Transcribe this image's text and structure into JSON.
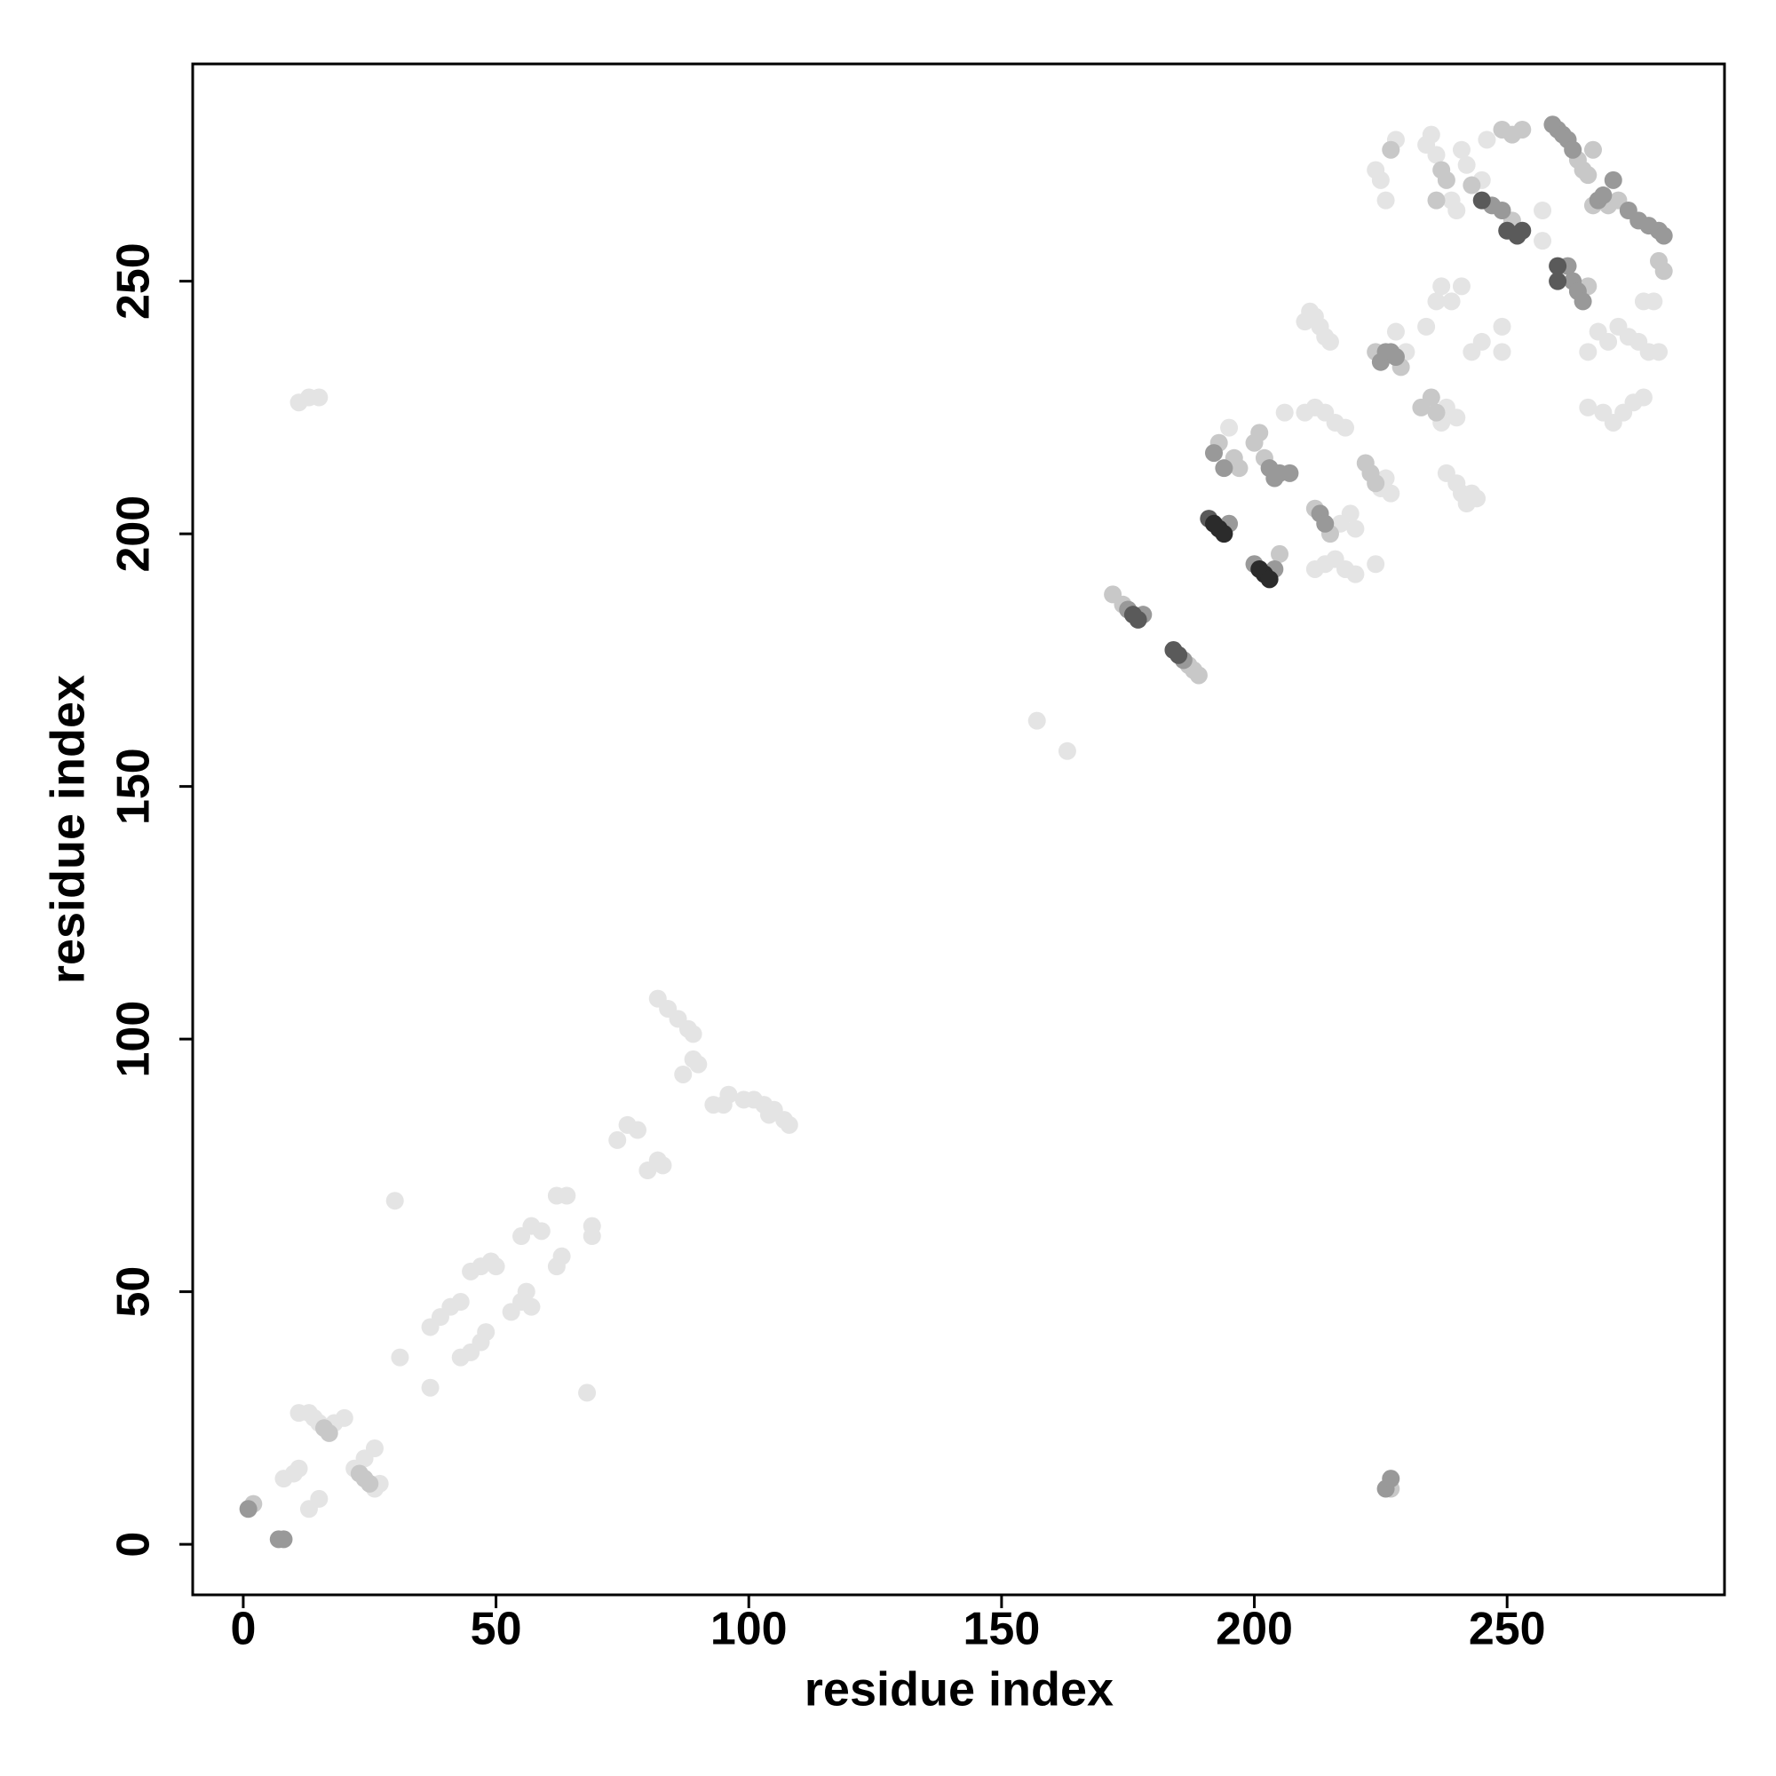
{
  "chart_data": {
    "type": "scatter",
    "x_label": "residue index",
    "y_label": "residue index",
    "xlim": [
      -10,
      293
    ],
    "ylim": [
      -10,
      293
    ],
    "xticks": [
      0,
      50,
      100,
      150,
      200,
      250
    ],
    "yticks": [
      0,
      50,
      100,
      150,
      200,
      250
    ],
    "grid": false,
    "series": [
      {
        "color": "#e4e4e4",
        "x": [
          8,
          10,
          11,
          13,
          15,
          11,
          13,
          14,
          15,
          18,
          20,
          22,
          26,
          24,
          26,
          27,
          11,
          13,
          15,
          30,
          31,
          37,
          37,
          39,
          41,
          43,
          43,
          45,
          47,
          48,
          45,
          47,
          49,
          50,
          53,
          55,
          56,
          57,
          55,
          57,
          59,
          62,
          63,
          62,
          64,
          68,
          69,
          69,
          74,
          76,
          78,
          80,
          82,
          83,
          82,
          84,
          86,
          88,
          89,
          87,
          89,
          90,
          93,
          96,
          95,
          99,
          101,
          103,
          105,
          107,
          108,
          104,
          157,
          163,
          195,
          206,
          210,
          211,
          212,
          213,
          214,
          215,
          210,
          212,
          214,
          216,
          218,
          217,
          219,
          220,
          212,
          214,
          216,
          218,
          220,
          224,
          225,
          226,
          227,
          230,
          228,
          224,
          225,
          226,
          228,
          237,
          238,
          240,
          238,
          240,
          241,
          242,
          243,
          244,
          234,
          236,
          237,
          239,
          241,
          243,
          245,
          249,
          249,
          234,
          235,
          236,
          239,
          240,
          241,
          242,
          245,
          246,
          257,
          257,
          266,
          268,
          270,
          272,
          274,
          276,
          278,
          280,
          277,
          266,
          269,
          271,
          273,
          275,
          277,
          279
        ],
        "values": [
          13,
          14,
          15,
          7,
          9,
          26,
          26,
          25,
          24,
          24,
          25,
          15,
          11,
          17,
          19,
          12,
          226,
          227,
          227,
          68,
          37,
          31,
          43,
          45,
          47,
          48,
          37,
          38,
          40,
          42,
          54,
          55,
          56,
          55,
          46,
          48,
          50,
          47,
          61,
          63,
          62,
          55,
          57,
          69,
          69,
          30,
          61,
          63,
          80,
          83,
          82,
          74,
          76,
          75,
          108,
          106,
          104,
          102,
          101,
          93,
          96,
          95,
          87,
          89,
          87,
          88,
          88,
          87,
          86,
          84,
          83,
          85,
          163,
          157,
          221,
          224,
          242,
          244,
          243,
          241,
          239,
          238,
          224,
          225,
          224,
          222,
          221,
          202,
          204,
          201,
          193,
          194,
          195,
          193,
          192,
          194,
          209,
          211,
          208,
          236,
          240,
          272,
          270,
          266,
          278,
          222,
          225,
          223,
          212,
          210,
          208,
          206,
          208,
          207,
          241,
          246,
          249,
          246,
          249,
          236,
          238,
          241,
          236,
          277,
          279,
          275,
          266,
          264,
          276,
          273,
          270,
          278,
          264,
          258,
          236,
          240,
          238,
          241,
          239,
          238,
          236,
          236,
          246,
          225,
          224,
          222,
          224,
          226,
          227,
          246
        ]
      },
      {
        "color": "#c8c8c8",
        "x": [
          2,
          172,
          174,
          187,
          188,
          189,
          205,
          212,
          215,
          264,
          265,
          266,
          267,
          251,
          249,
          251,
          253,
          266,
          267,
          270,
          272,
          281,
          280,
          224,
          229,
          193,
          196,
          197,
          200,
          201,
          202,
          222,
          223,
          224,
          233,
          235,
          236,
          227,
          236,
          238,
          237,
          243,
          16,
          17,
          23,
          24,
          25,
          227
        ],
        "values": [
          8,
          188,
          186,
          174,
          173,
          172,
          196,
          205,
          200,
          274,
          272,
          271,
          276,
          262,
          280,
          279,
          280,
          249,
          265,
          265,
          266,
          252,
          254,
          236,
          233,
          218,
          215,
          213,
          218,
          220,
          215,
          214,
          212,
          210,
          225,
          227,
          224,
          276,
          266,
          270,
          272,
          269,
          23,
          22,
          14,
          13,
          12,
          11
        ]
      },
      {
        "color": "#999999",
        "x": [
          175,
          178,
          186,
          195,
          200,
          204,
          213,
          214,
          203,
          204,
          259,
          260,
          261,
          262,
          263,
          1,
          7,
          8,
          247,
          249,
          262,
          263,
          264,
          265,
          268,
          269,
          271,
          274,
          276,
          278,
          280,
          281,
          226,
          227,
          225,
          226,
          227,
          228,
          192,
          194,
          205,
          207
        ],
        "values": [
          185,
          184,
          175,
          202,
          194,
          193,
          204,
          202,
          213,
          211,
          281,
          280,
          279,
          278,
          276,
          7,
          1,
          1,
          265,
          264,
          253,
          250,
          248,
          246,
          266,
          267,
          270,
          264,
          262,
          261,
          260,
          259,
          11,
          13,
          234,
          236,
          236,
          235,
          216,
          213,
          212,
          212
        ]
      },
      {
        "color": "#5a5a5a",
        "x": [
          176,
          177,
          184,
          185,
          250,
          252,
          253,
          260,
          260,
          191,
          245
        ],
        "values": [
          184,
          183,
          177,
          176,
          260,
          259,
          260,
          253,
          250,
          203,
          266
        ]
      },
      {
        "color": "#2b2b2b",
        "x": [
          193,
          194,
          192,
          201,
          202,
          203
        ],
        "values": [
          201,
          200,
          202,
          193,
          192,
          191
        ]
      }
    ]
  }
}
